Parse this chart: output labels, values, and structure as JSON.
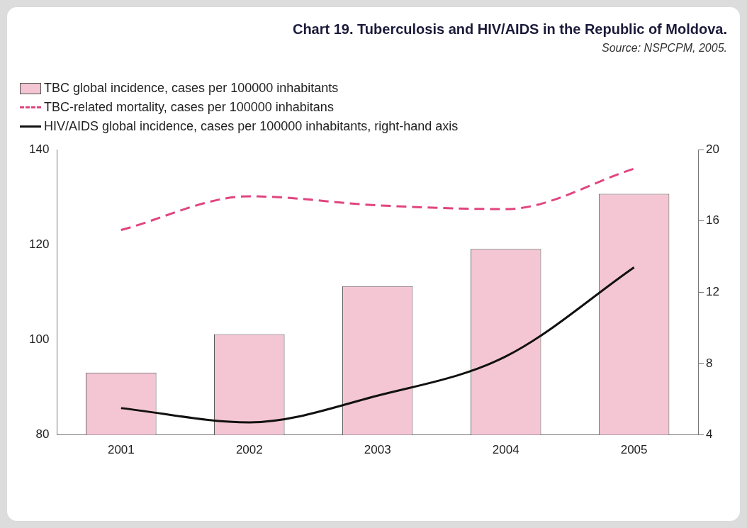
{
  "chart_data": {
    "type": "bar",
    "title": "Chart 19. Tuberculosis and HIV/AIDS in the Republic of Moldova.",
    "annotations": [
      "Source: NSPCPM, 2005."
    ],
    "categories": [
      "2001",
      "2002",
      "2003",
      "2004",
      "2005"
    ],
    "series": [
      {
        "name": "TBC global incidence, cases per 100000 inhabitants",
        "color": "#f4c6d4",
        "values": [
          93.1,
          101.2,
          111.3,
          119.1,
          130.7
        ]
      },
      {
        "name": "TBC-related mortality, cases per 100000 inhabitans",
        "type": "line",
        "line_style": "dashed",
        "color": "#e0457f",
        "values": [
          123.1,
          130.2,
          128.3,
          127.5,
          136.0
        ]
      },
      {
        "name": "HIV/AIDS global incidence, cases per 100000 inhabitants, right-hand axis",
        "type": "line",
        "line_style": "solid",
        "axis": "y2",
        "color": "#111111",
        "values": [
          5.5,
          4.7,
          6.2,
          8.4,
          13.4
        ]
      }
    ],
    "ylim": [
      80,
      140
    ],
    "yticks": [
      80,
      100,
      120,
      140
    ],
    "y2lim": [
      4,
      20
    ],
    "y2ticks": [
      4,
      8,
      12,
      16,
      20
    ],
    "grid": false,
    "legend": "top left",
    "marker": "none"
  }
}
